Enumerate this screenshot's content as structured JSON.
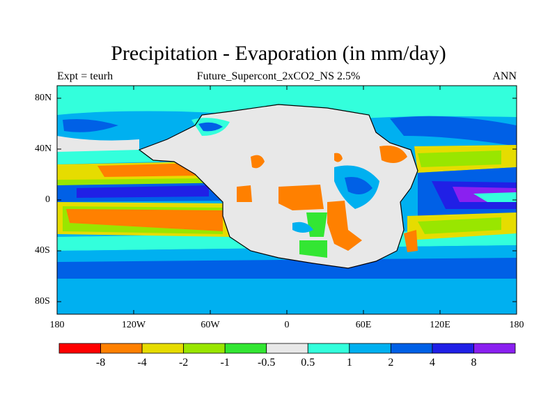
{
  "title": "Precipitation - Evaporation (in mm/day)",
  "experiment_label": "Expt = teurh",
  "run_label": "Future_Supercont_2xCO2_NS 2.5%",
  "season_label": "ANN",
  "y_axis": {
    "ticks": [
      "80N",
      "40N",
      "0",
      "40S",
      "80S"
    ]
  },
  "x_axis": {
    "ticks": [
      "180",
      "120W",
      "60W",
      "0",
      "60E",
      "120E",
      "180"
    ]
  },
  "colorbar": {
    "labels": [
      "-8",
      "-4",
      "-2",
      "-1",
      "-0.5",
      "0.5",
      "1",
      "2",
      "4",
      "8"
    ],
    "colors": [
      "#ff0000",
      "#ff8000",
      "#e6dc00",
      "#99e600",
      "#33e633",
      "#e8e8e8",
      "#33ffdc",
      "#00b0f0",
      "#0060e6",
      "#2020e6",
      "#8a20f0"
    ]
  },
  "colors": {
    "land_dry": "#e8e8e8",
    "ocean_light": "#00b0f0",
    "ocean_teal": "#33ffdc",
    "strong_wet": "#2020e6",
    "dry_orange": "#ff8000",
    "yellow": "#e6dc00",
    "green": "#99e600"
  }
}
